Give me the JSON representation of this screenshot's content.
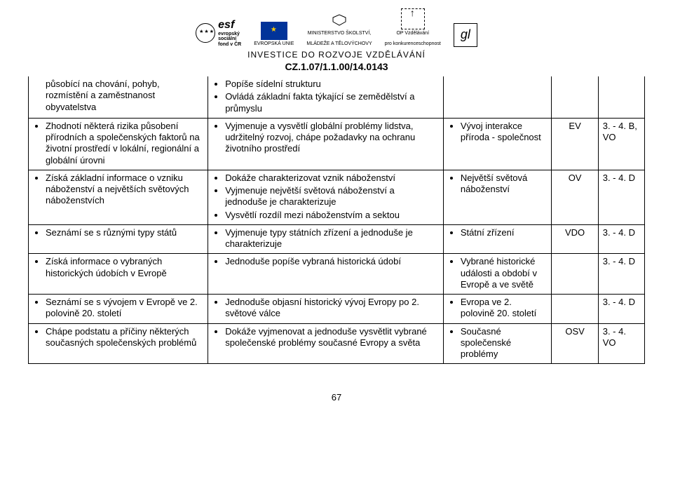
{
  "header": {
    "logo_esf_line1": "evropský",
    "logo_esf_line2": "sociální",
    "logo_esf_line3": "fond v ČR",
    "logo_eu": "EVROPSKÁ UNIE",
    "logo_msmt_l1": "MINISTERSTVO ŠKOLSTVÍ,",
    "logo_msmt_l2": "MLÁDEŽE A TĚLOVÝCHOVY",
    "logo_opvk_l1": "OP Vzdělávání",
    "logo_opvk_l2": "pro konkurenceschopnost",
    "invest": "INVESTICE DO ROZVOJE VZDĚLÁVÁNÍ",
    "code": "CZ.1.07/1.1.00/14.0143"
  },
  "rows": [
    {
      "c1": [
        "působící na chování, pohyb, rozmístění a zaměstnanost obyvatelstva"
      ],
      "c1_plain": true,
      "c2": [
        "Popíše sídelní strukturu",
        "Ovládá základní fakta týkající se zemědělství a průmyslu"
      ],
      "c3": [],
      "c4": "",
      "c5": ""
    },
    {
      "c1": [
        "Zhodnotí některá rizika působení přírodních a společenských faktorů na životní prostředí v lokální, regionální a globální úrovni"
      ],
      "c2": [
        "Vyjmenuje a vysvětlí globální problémy lidstva, udržitelný rozvoj, chápe požadavky na ochranu životního prostředí"
      ],
      "c3": [
        "Vývoj interakce příroda - společnost"
      ],
      "c4": "EV",
      "c5": "3. - 4. B, VO"
    },
    {
      "c1": [
        "Získá základní informace o vzniku náboženství a největších světových náboženstvích"
      ],
      "c2": [
        "Dokáže charakterizovat vznik náboženství",
        "Vyjmenuje největší světová náboženství a jednoduše je charakterizuje",
        "Vysvětlí rozdíl mezi náboženstvím a sektou"
      ],
      "c3": [
        "Největší světová náboženství"
      ],
      "c4": "OV",
      "c5": "3. - 4. D"
    },
    {
      "c1": [
        "Seznámí se s různými typy států"
      ],
      "c2": [
        "Vyjmenuje typy státních zřízení a jednoduše je charakterizuje"
      ],
      "c3": [
        "Státní zřízení"
      ],
      "c4": "VDO",
      "c5": "3. - 4. D"
    },
    {
      "c1": [
        "Získá informace o vybraných historických údobích v Evropě"
      ],
      "c2": [
        "Jednoduše popíše vybraná historická údobí"
      ],
      "c3": [
        "Vybrané historické události a období v Evropě a ve světě"
      ],
      "c4": "",
      "c5": "3. - 4. D"
    },
    {
      "c1": [
        "Seznámí se s vývojem v Evropě ve 2. polovině 20. století"
      ],
      "c2": [
        "Jednoduše objasní historický vývoj Evropy po 2. světové válce"
      ],
      "c3": [
        "Evropa ve 2. polovině 20. století"
      ],
      "c4": "",
      "c5": "3. - 4. D"
    },
    {
      "c1": [
        "Chápe podstatu a příčiny některých současných společenských problémů"
      ],
      "c2": [
        "Dokáže vyjmenovat a jednoduše vysvětlit vybrané společenské problémy současné Evropy a světa"
      ],
      "c3": [
        "Současné společenské problémy"
      ],
      "c4": "OSV",
      "c5": "3. - 4. VO"
    }
  ],
  "page_number": "67"
}
